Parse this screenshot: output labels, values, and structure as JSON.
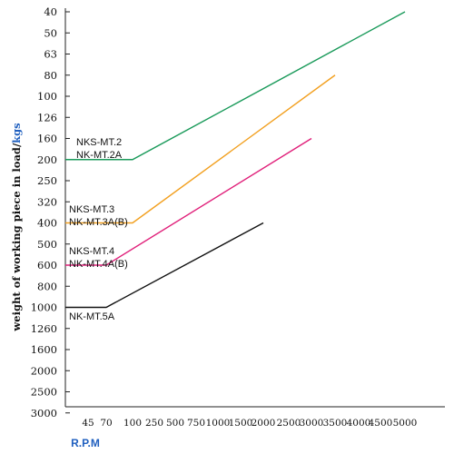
{
  "chart_data": {
    "type": "line",
    "title": "",
    "xlabel": "R.P.M",
    "ylabel": "weight of working piece in load/",
    "ylabel_unit": "kgs",
    "x_ticks": [
      "45",
      "70",
      "100",
      "250",
      "500",
      "750",
      "1000",
      "1500",
      "2000",
      "2500",
      "3000",
      "3500",
      "4000",
      "4500",
      "5000"
    ],
    "y_ticks": [
      "40",
      "50",
      "63",
      "80",
      "100",
      "126",
      "160",
      "200",
      "250",
      "320",
      "400",
      "500",
      "600",
      "800",
      "1000",
      "1260",
      "1600",
      "2000",
      "2500",
      "3000"
    ],
    "grid": false,
    "series": [
      {
        "name": "NKS-MT.2 / NK-MT.2A",
        "color": "#1a9a5a",
        "points": [
          [
            "45",
            "200"
          ],
          [
            "100",
            "200"
          ],
          [
            "5000",
            "40"
          ]
        ]
      },
      {
        "name": "NKS-MT.3 / NK-MT.3A(B)",
        "color": "#f2a020",
        "points": [
          [
            "45",
            "400"
          ],
          [
            "100",
            "400"
          ],
          [
            "3500",
            "80"
          ]
        ]
      },
      {
        "name": "NKS-MT.4 / NK-MT.4A(B)",
        "color": "#e0207a",
        "points": [
          [
            "45",
            "600"
          ],
          [
            "70",
            "600"
          ],
          [
            "3000",
            "160"
          ]
        ]
      },
      {
        "name": "NK-MT.5A",
        "color": "#111111",
        "points": [
          [
            "45",
            "1000"
          ],
          [
            "70",
            "1000"
          ],
          [
            "2000",
            "400"
          ]
        ]
      }
    ],
    "annotations": [
      {
        "series": 0,
        "lines": [
          "NKS-MT.2",
          "NK-MT.2A"
        ]
      },
      {
        "series": 1,
        "lines": [
          "NKS-MT.3",
          "NK-MT.3A(B)"
        ]
      },
      {
        "series": 2,
        "lines": [
          "NKS-MT.4",
          "NK-MT.4A(B)"
        ]
      },
      {
        "series": 3,
        "lines": [
          "NK-MT.5A"
        ]
      }
    ]
  }
}
